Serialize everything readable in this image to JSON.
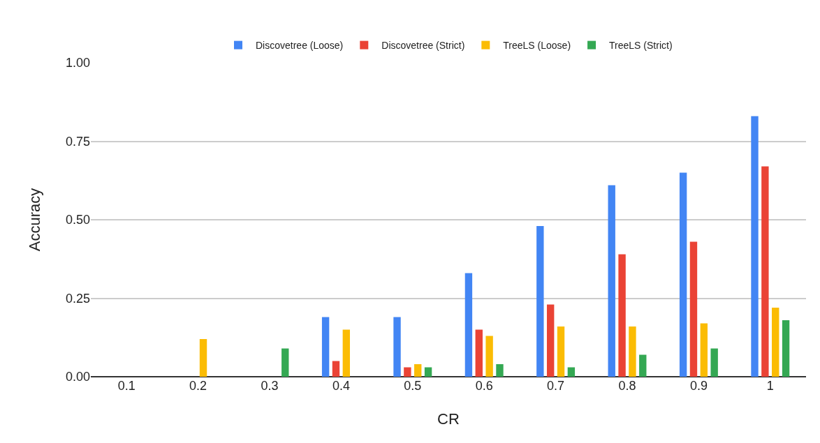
{
  "chart_data": {
    "type": "bar",
    "xlabel": "CR",
    "ylabel": "Accuracy",
    "categories": [
      "0.1",
      "0.2",
      "0.3",
      "0.4",
      "0.5",
      "0.6",
      "0.7",
      "0.8",
      "0.9",
      "1"
    ],
    "series": [
      {
        "name": "Discovetree (Loose)",
        "color": "#4285f4",
        "values": [
          0,
          0,
          0,
          0.19,
          0.19,
          0.33,
          0.48,
          0.61,
          0.65,
          0.83
        ]
      },
      {
        "name": "Discovetree (Strict)",
        "color": "#ea4335",
        "values": [
          0,
          0,
          0,
          0.05,
          0.03,
          0.15,
          0.23,
          0.39,
          0.43,
          0.67
        ]
      },
      {
        "name": "TreeLS (Loose)",
        "color": "#fbbc04",
        "values": [
          0,
          0.12,
          0,
          0.15,
          0.04,
          0.13,
          0.16,
          0.16,
          0.17,
          0.22
        ]
      },
      {
        "name": "TreeLS (Strict)",
        "color": "#34a853",
        "values": [
          0,
          0,
          0.09,
          0,
          0.03,
          0.04,
          0.03,
          0.07,
          0.09,
          0.18
        ]
      }
    ],
    "ylim": [
      0,
      1
    ],
    "yticks": [
      {
        "value": 0,
        "label": "0.00"
      },
      {
        "value": 0.25,
        "label": "0.25"
      },
      {
        "value": 0.5,
        "label": "0.50"
      },
      {
        "value": 0.75,
        "label": "0.75"
      },
      {
        "value": 1,
        "label": "1.00"
      }
    ],
    "grid": "y",
    "legend": "top"
  }
}
